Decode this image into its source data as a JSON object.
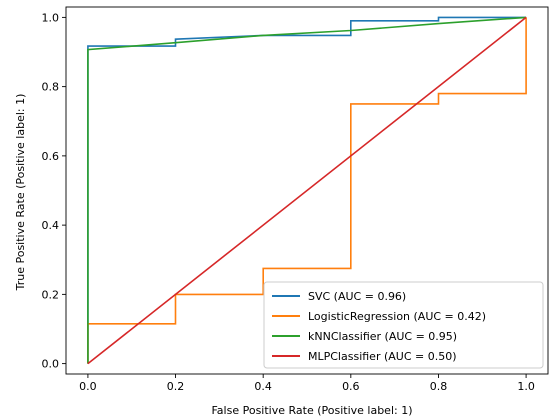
{
  "chart_data": {
    "type": "line",
    "title": "",
    "xlabel": "False Positive Rate (Positive label: 1)",
    "ylabel": "True Positive Rate (Positive label: 1)",
    "xlim": [
      -0.05,
      1.05
    ],
    "ylim": [
      -0.03,
      1.03
    ],
    "xticks": [
      0.0,
      0.2,
      0.4,
      0.6,
      0.8,
      1.0
    ],
    "yticks": [
      0.0,
      0.2,
      0.4,
      0.6,
      0.8,
      1.0
    ],
    "xtick_labels": [
      "0.0",
      "0.2",
      "0.4",
      "0.6",
      "0.8",
      "1.0"
    ],
    "ytick_labels": [
      "0.0",
      "0.2",
      "0.4",
      "0.6",
      "0.8",
      "1.0"
    ],
    "grid": false,
    "legend_position": "lower-right",
    "series": [
      {
        "name": "SVC (AUC = 0.96)",
        "color": "#1f77b4",
        "x": [
          0,
          0,
          0.2,
          0.2,
          0.4,
          0.6,
          0.6,
          0.8,
          0.8,
          1.0
        ],
        "y": [
          0,
          0.917,
          0.917,
          0.937,
          0.948,
          0.948,
          0.99,
          0.99,
          1.0,
          1.0
        ]
      },
      {
        "name": "LogisticRegression (AUC = 0.42)",
        "color": "#ff7f0e",
        "x": [
          0,
          0,
          0.2,
          0.2,
          0.4,
          0.4,
          0.6,
          0.6,
          0.8,
          0.8,
          1.0,
          1.0
        ],
        "y": [
          0,
          0.115,
          0.115,
          0.2,
          0.2,
          0.275,
          0.275,
          0.75,
          0.75,
          0.78,
          0.78,
          1.0
        ]
      },
      {
        "name": "kNNClassifier (AUC = 0.95)",
        "color": "#2ca02c",
        "x": [
          0,
          0,
          0.2,
          0.4,
          0.6,
          0.8,
          1.0
        ],
        "y": [
          0,
          0.907,
          0.927,
          0.948,
          0.962,
          0.982,
          1.0
        ]
      },
      {
        "name": "MLPClassifier (AUC = 0.50)",
        "color": "#d62728",
        "x": [
          0,
          1.0
        ],
        "y": [
          0,
          1.0
        ]
      }
    ]
  }
}
